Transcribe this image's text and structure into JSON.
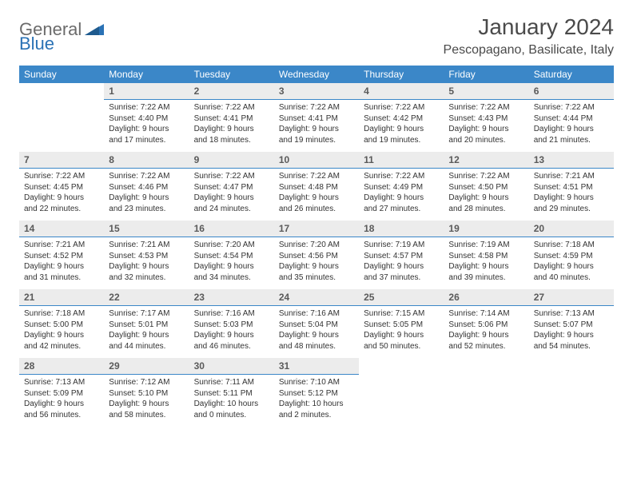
{
  "logo": {
    "part1": "General",
    "part2": "Blue"
  },
  "title": "January 2024",
  "location": "Pescopagano, Basilicate, Italy",
  "colors": {
    "header_bg": "#3b87c8",
    "header_text": "#ffffff",
    "daynum_bg": "#ececec",
    "daynum_border": "#3b87c8",
    "logo_gray": "#6b6b6b",
    "logo_blue": "#2a72b5",
    "text": "#333333"
  },
  "day_headers": [
    "Sunday",
    "Monday",
    "Tuesday",
    "Wednesday",
    "Thursday",
    "Friday",
    "Saturday"
  ],
  "weeks": [
    [
      null,
      {
        "n": "1",
        "sr": "Sunrise: 7:22 AM",
        "ss": "Sunset: 4:40 PM",
        "dl1": "Daylight: 9 hours",
        "dl2": "and 17 minutes."
      },
      {
        "n": "2",
        "sr": "Sunrise: 7:22 AM",
        "ss": "Sunset: 4:41 PM",
        "dl1": "Daylight: 9 hours",
        "dl2": "and 18 minutes."
      },
      {
        "n": "3",
        "sr": "Sunrise: 7:22 AM",
        "ss": "Sunset: 4:41 PM",
        "dl1": "Daylight: 9 hours",
        "dl2": "and 19 minutes."
      },
      {
        "n": "4",
        "sr": "Sunrise: 7:22 AM",
        "ss": "Sunset: 4:42 PM",
        "dl1": "Daylight: 9 hours",
        "dl2": "and 19 minutes."
      },
      {
        "n": "5",
        "sr": "Sunrise: 7:22 AM",
        "ss": "Sunset: 4:43 PM",
        "dl1": "Daylight: 9 hours",
        "dl2": "and 20 minutes."
      },
      {
        "n": "6",
        "sr": "Sunrise: 7:22 AM",
        "ss": "Sunset: 4:44 PM",
        "dl1": "Daylight: 9 hours",
        "dl2": "and 21 minutes."
      }
    ],
    [
      {
        "n": "7",
        "sr": "Sunrise: 7:22 AM",
        "ss": "Sunset: 4:45 PM",
        "dl1": "Daylight: 9 hours",
        "dl2": "and 22 minutes."
      },
      {
        "n": "8",
        "sr": "Sunrise: 7:22 AM",
        "ss": "Sunset: 4:46 PM",
        "dl1": "Daylight: 9 hours",
        "dl2": "and 23 minutes."
      },
      {
        "n": "9",
        "sr": "Sunrise: 7:22 AM",
        "ss": "Sunset: 4:47 PM",
        "dl1": "Daylight: 9 hours",
        "dl2": "and 24 minutes."
      },
      {
        "n": "10",
        "sr": "Sunrise: 7:22 AM",
        "ss": "Sunset: 4:48 PM",
        "dl1": "Daylight: 9 hours",
        "dl2": "and 26 minutes."
      },
      {
        "n": "11",
        "sr": "Sunrise: 7:22 AM",
        "ss": "Sunset: 4:49 PM",
        "dl1": "Daylight: 9 hours",
        "dl2": "and 27 minutes."
      },
      {
        "n": "12",
        "sr": "Sunrise: 7:22 AM",
        "ss": "Sunset: 4:50 PM",
        "dl1": "Daylight: 9 hours",
        "dl2": "and 28 minutes."
      },
      {
        "n": "13",
        "sr": "Sunrise: 7:21 AM",
        "ss": "Sunset: 4:51 PM",
        "dl1": "Daylight: 9 hours",
        "dl2": "and 29 minutes."
      }
    ],
    [
      {
        "n": "14",
        "sr": "Sunrise: 7:21 AM",
        "ss": "Sunset: 4:52 PM",
        "dl1": "Daylight: 9 hours",
        "dl2": "and 31 minutes."
      },
      {
        "n": "15",
        "sr": "Sunrise: 7:21 AM",
        "ss": "Sunset: 4:53 PM",
        "dl1": "Daylight: 9 hours",
        "dl2": "and 32 minutes."
      },
      {
        "n": "16",
        "sr": "Sunrise: 7:20 AM",
        "ss": "Sunset: 4:54 PM",
        "dl1": "Daylight: 9 hours",
        "dl2": "and 34 minutes."
      },
      {
        "n": "17",
        "sr": "Sunrise: 7:20 AM",
        "ss": "Sunset: 4:56 PM",
        "dl1": "Daylight: 9 hours",
        "dl2": "and 35 minutes."
      },
      {
        "n": "18",
        "sr": "Sunrise: 7:19 AM",
        "ss": "Sunset: 4:57 PM",
        "dl1": "Daylight: 9 hours",
        "dl2": "and 37 minutes."
      },
      {
        "n": "19",
        "sr": "Sunrise: 7:19 AM",
        "ss": "Sunset: 4:58 PM",
        "dl1": "Daylight: 9 hours",
        "dl2": "and 39 minutes."
      },
      {
        "n": "20",
        "sr": "Sunrise: 7:18 AM",
        "ss": "Sunset: 4:59 PM",
        "dl1": "Daylight: 9 hours",
        "dl2": "and 40 minutes."
      }
    ],
    [
      {
        "n": "21",
        "sr": "Sunrise: 7:18 AM",
        "ss": "Sunset: 5:00 PM",
        "dl1": "Daylight: 9 hours",
        "dl2": "and 42 minutes."
      },
      {
        "n": "22",
        "sr": "Sunrise: 7:17 AM",
        "ss": "Sunset: 5:01 PM",
        "dl1": "Daylight: 9 hours",
        "dl2": "and 44 minutes."
      },
      {
        "n": "23",
        "sr": "Sunrise: 7:16 AM",
        "ss": "Sunset: 5:03 PM",
        "dl1": "Daylight: 9 hours",
        "dl2": "and 46 minutes."
      },
      {
        "n": "24",
        "sr": "Sunrise: 7:16 AM",
        "ss": "Sunset: 5:04 PM",
        "dl1": "Daylight: 9 hours",
        "dl2": "and 48 minutes."
      },
      {
        "n": "25",
        "sr": "Sunrise: 7:15 AM",
        "ss": "Sunset: 5:05 PM",
        "dl1": "Daylight: 9 hours",
        "dl2": "and 50 minutes."
      },
      {
        "n": "26",
        "sr": "Sunrise: 7:14 AM",
        "ss": "Sunset: 5:06 PM",
        "dl1": "Daylight: 9 hours",
        "dl2": "and 52 minutes."
      },
      {
        "n": "27",
        "sr": "Sunrise: 7:13 AM",
        "ss": "Sunset: 5:07 PM",
        "dl1": "Daylight: 9 hours",
        "dl2": "and 54 minutes."
      }
    ],
    [
      {
        "n": "28",
        "sr": "Sunrise: 7:13 AM",
        "ss": "Sunset: 5:09 PM",
        "dl1": "Daylight: 9 hours",
        "dl2": "and 56 minutes."
      },
      {
        "n": "29",
        "sr": "Sunrise: 7:12 AM",
        "ss": "Sunset: 5:10 PM",
        "dl1": "Daylight: 9 hours",
        "dl2": "and 58 minutes."
      },
      {
        "n": "30",
        "sr": "Sunrise: 7:11 AM",
        "ss": "Sunset: 5:11 PM",
        "dl1": "Daylight: 10 hours",
        "dl2": "and 0 minutes."
      },
      {
        "n": "31",
        "sr": "Sunrise: 7:10 AM",
        "ss": "Sunset: 5:12 PM",
        "dl1": "Daylight: 10 hours",
        "dl2": "and 2 minutes."
      },
      null,
      null,
      null
    ]
  ]
}
